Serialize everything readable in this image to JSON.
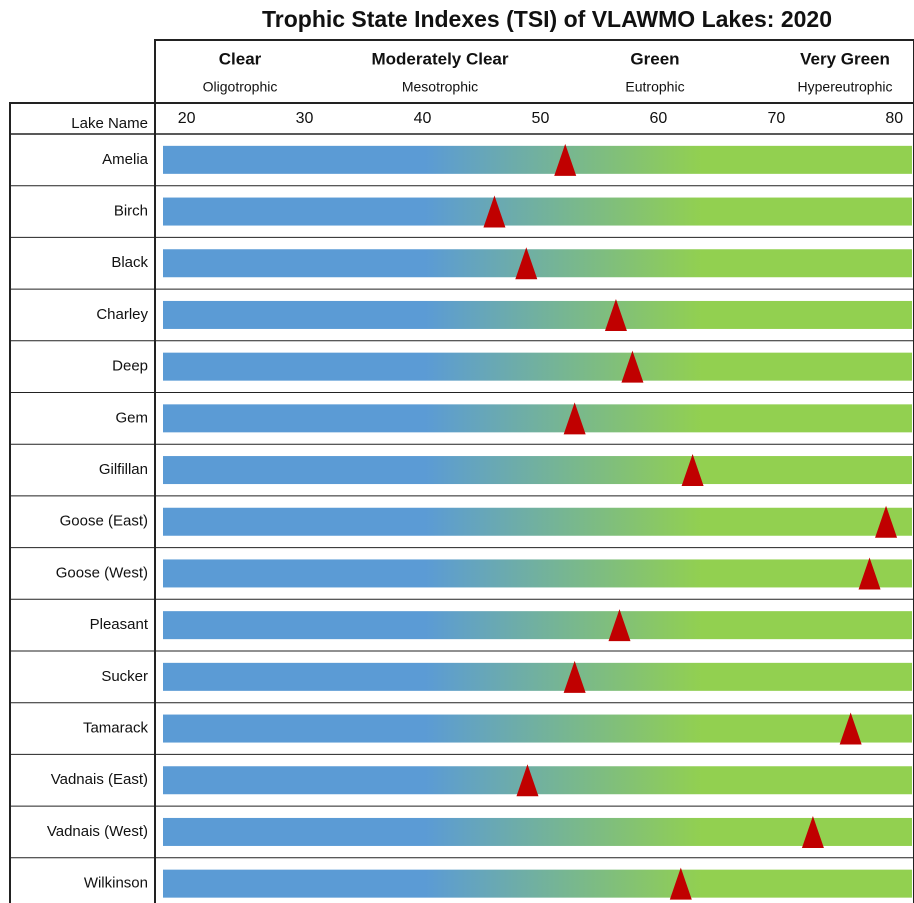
{
  "chart_data": {
    "type": "marker",
    "title": "Trophic State Indexes (TSI) of VLAWMO Lakes: 2020",
    "category_header": "Lake Name",
    "zones": [
      {
        "name": "Clear",
        "subtitle": "Oligotrophic"
      },
      {
        "name": "Moderately Clear",
        "subtitle": "Mesotrophic"
      },
      {
        "name": "Green",
        "subtitle": "Eutrophic"
      },
      {
        "name": "Very Green",
        "subtitle": "Hypereutrophic"
      }
    ],
    "categories": [
      "Amelia",
      "Birch",
      "Black",
      "Charley",
      "Deep",
      "Gem",
      "Gilfillan",
      "Goose (East)",
      "Goose (West)",
      "Pleasant",
      "Sucker",
      "Tamarack",
      "Vadnais (East)",
      "Vadnais (West)",
      "Wilkinson"
    ],
    "values": [
      52.1,
      46.1,
      48.8,
      56.4,
      57.8,
      52.9,
      62.9,
      79.3,
      77.9,
      56.7,
      52.9,
      76.3,
      48.9,
      73.1,
      61.9
    ],
    "marker_color": "#c00000",
    "bar_colors": [
      "#5b9bd5",
      "#92d050"
    ],
    "xlim": [
      18,
      81.5
    ],
    "xticks": [
      20,
      30,
      40,
      50,
      60,
      70,
      80
    ]
  }
}
